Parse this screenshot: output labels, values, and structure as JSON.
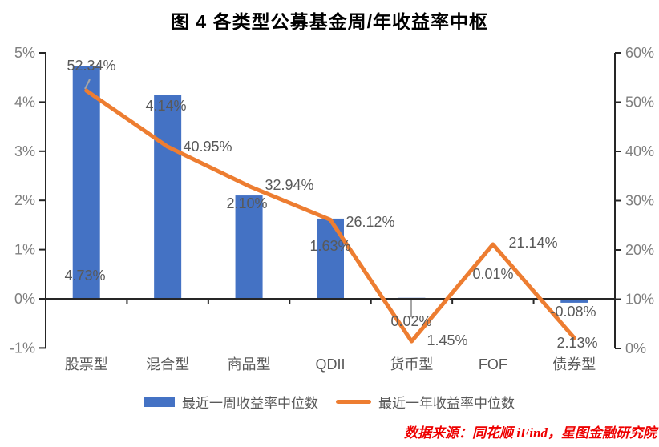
{
  "title": "图 4  各类型公募基金周/年收益率中枢",
  "source_note": "数据来源：同花顺 iFind，星图金融研究院",
  "legend": {
    "bar_label": "最近一周收益率中位数",
    "line_label": "最近一年收益率中位数"
  },
  "colors": {
    "bar": "#4472C4",
    "line": "#ED7D31",
    "axis_line": "#262626",
    "axis_tick_text": "#7f7f7f",
    "data_label_text": "#595959",
    "leader_line": "#a6a6a6",
    "source_red": "#ee0000"
  },
  "chart_data": {
    "type": "combo (bar + line, dual axis)",
    "title": "图 4  各类型公募基金周/年收益率中枢",
    "categories": [
      "股票型",
      "混合型",
      "商品型",
      "QDII",
      "货币型",
      "FOF",
      "债券型"
    ],
    "series": [
      {
        "name": "最近一周收益率中位数",
        "type": "bar",
        "axis": "left",
        "color": "#4472C4",
        "values": [
          4.73,
          4.14,
          2.1,
          1.63,
          0.02,
          0.01,
          -0.08
        ],
        "labels": [
          "4.73%",
          "4.14%",
          "2.10%",
          "1.63%",
          "0.02%",
          "0.01%",
          "-0.08%"
        ]
      },
      {
        "name": "最近一年收益率中位数",
        "type": "line",
        "axis": "right",
        "color": "#ED7D31",
        "values": [
          52.34,
          40.95,
          32.94,
          26.12,
          1.45,
          21.14,
          2.13
        ],
        "labels": [
          "52.34%",
          "40.95%",
          "32.94%",
          "26.12%",
          "1.45%",
          "21.14%",
          "2.13%"
        ]
      }
    ],
    "left_axis": {
      "min": -1,
      "max": 5,
      "tick_labels": [
        "5%",
        "4%",
        "3%",
        "2%",
        "1%",
        "0%",
        "-1%"
      ]
    },
    "right_axis": {
      "min": 0,
      "max": 60,
      "tick_labels": [
        "60%",
        "50%",
        "40%",
        "30%",
        "20%",
        "10%",
        "0%"
      ]
    },
    "grid": false,
    "legend_position": "bottom"
  }
}
